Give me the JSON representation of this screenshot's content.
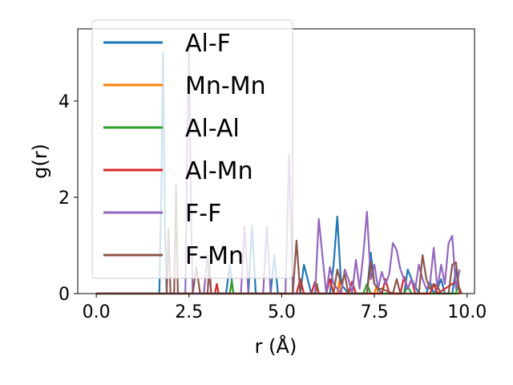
{
  "chart_data": {
    "type": "line",
    "xlabel": "r (Å)",
    "ylabel": "g(r)",
    "xlim": [
      -0.5,
      10.2
    ],
    "ylim": [
      0,
      5.5
    ],
    "xticks": [
      0.0,
      2.5,
      5.0,
      7.5,
      10.0
    ],
    "xtick_labels": [
      "0.0",
      "2.5",
      "5.0",
      "7.5",
      "10.0"
    ],
    "yticks": [
      0,
      2,
      4
    ],
    "ytick_labels": [
      "0",
      "2",
      "4"
    ],
    "grid": false,
    "legend_position": "upper-left",
    "series": [
      {
        "name": "Al-F",
        "color": "#1f77b4",
        "x": [
          0,
          1.7,
          1.75,
          1.8,
          1.85,
          1.9,
          2.0,
          3.5,
          3.6,
          3.7,
          4.1,
          4.2,
          4.3,
          4.7,
          4.8,
          4.9,
          5.5,
          5.6,
          5.8,
          6.3,
          6.4,
          6.5,
          6.6,
          6.8,
          7.3,
          7.4,
          7.5,
          7.7,
          8.3,
          8.4,
          8.5,
          8.7,
          8.9,
          9.0,
          9.1,
          9.2,
          9.3,
          9.4,
          9.6,
          9.7,
          9.8
        ],
        "y": [
          0,
          0,
          2.0,
          5.0,
          1.5,
          0,
          0,
          0,
          0.6,
          0,
          0,
          1.4,
          0,
          0,
          0.8,
          0,
          0,
          0.6,
          0,
          0,
          0.6,
          1.6,
          0.2,
          0,
          0,
          0.85,
          0.2,
          0,
          0,
          0.5,
          0.3,
          0,
          0,
          0.25,
          0,
          0.1,
          0.3,
          0,
          0,
          0.5,
          0
        ]
      },
      {
        "name": "Mn-Mn",
        "color": "#ff7f0e",
        "x": [
          0,
          3.6,
          3.65,
          3.7,
          6.5,
          6.55,
          6.6,
          7.5,
          7.55,
          7.6,
          9.8
        ],
        "y": [
          0,
          0,
          0.25,
          0,
          0,
          0.25,
          0,
          0,
          0.15,
          0,
          0
        ]
      },
      {
        "name": "Al-Al",
        "color": "#2ca02c",
        "x": [
          0,
          3.6,
          3.65,
          3.7,
          5.9,
          5.95,
          6.0,
          7.2,
          7.3,
          7.4,
          8.3,
          8.4,
          8.5,
          9.7,
          9.75,
          9.8
        ],
        "y": [
          0,
          0,
          0.25,
          0,
          0,
          0.2,
          0,
          0,
          0.2,
          0,
          0,
          0.15,
          0,
          0,
          0.2,
          0
        ]
      },
      {
        "name": "Al-Mn",
        "color": "#d62728",
        "x": [
          0,
          3.2,
          3.25,
          3.3,
          5.4,
          5.5,
          5.6,
          5.8,
          5.9,
          6.0,
          6.2,
          6.3,
          6.4,
          6.8,
          6.9,
          7.0,
          7.7,
          7.8,
          7.9,
          8.2,
          8.3,
          8.4,
          8.5,
          8.6,
          9.0,
          9.1,
          9.2,
          9.7,
          9.8,
          9.85
        ],
        "y": [
          0,
          0,
          0.2,
          0,
          0,
          0.3,
          0,
          0,
          0.25,
          0,
          0,
          0.3,
          0,
          0,
          0.25,
          0,
          0,
          0.3,
          0,
          0,
          0.35,
          0.1,
          0.3,
          0,
          0,
          0.2,
          0,
          0.25,
          0.1,
          0
        ]
      },
      {
        "name": "F-F",
        "color": "#9467bd",
        "x": [
          0,
          2.4,
          2.45,
          2.5,
          2.55,
          2.6,
          2.9,
          3.0,
          3.1,
          3.9,
          4.0,
          4.1,
          4.5,
          4.6,
          4.7,
          5.1,
          5.2,
          5.3,
          5.9,
          6.0,
          6.2,
          6.3,
          6.4,
          6.6,
          6.7,
          6.8,
          6.9,
          7.0,
          7.1,
          7.2,
          7.3,
          7.4,
          7.5,
          7.6,
          7.7,
          7.8,
          7.9,
          8.0,
          8.1,
          8.2,
          8.3,
          8.4,
          8.5,
          8.6,
          8.7,
          8.8,
          8.9,
          9.0,
          9.1,
          9.2,
          9.3,
          9.4,
          9.5,
          9.6,
          9.7,
          9.8
        ],
        "y": [
          0,
          0,
          3.0,
          5.1,
          2.0,
          0,
          0,
          0.8,
          0,
          0,
          1.4,
          0,
          0,
          1.4,
          0,
          0,
          2.9,
          0,
          0,
          1.55,
          0,
          0.55,
          0.2,
          0,
          0.5,
          0.3,
          0,
          0.7,
          0.1,
          0.8,
          1.7,
          0.3,
          0.6,
          0.1,
          0.45,
          0.2,
          0.4,
          1.05,
          0.9,
          0.5,
          0.3,
          0.1,
          0.3,
          0.1,
          0.6,
          0.3,
          0.1,
          0.2,
          0.95,
          0.1,
          0.6,
          0.2,
          1.05,
          1.2,
          0.1,
          0.5
        ]
      },
      {
        "name": "F-Mn",
        "color": "#8c564b",
        "x": [
          0,
          1.9,
          1.95,
          2.0,
          2.1,
          2.15,
          2.2,
          2.6,
          2.7,
          2.8,
          3.0,
          3.05,
          3.1,
          5.3,
          5.4,
          5.5,
          6.4,
          6.5,
          6.6,
          6.7,
          6.8,
          7.3,
          7.4,
          7.5,
          7.6,
          7.7,
          8.0,
          8.1,
          8.2,
          8.7,
          8.8,
          8.9,
          9.0,
          9.1,
          9.2,
          9.3,
          9.5,
          9.6,
          9.7,
          9.8
        ],
        "y": [
          0,
          0,
          1.35,
          0,
          0,
          2.25,
          0,
          0,
          0.55,
          0,
          0,
          0.6,
          0,
          0,
          1.1,
          0,
          0,
          0.5,
          0.2,
          0.4,
          0,
          0,
          0.65,
          0.2,
          0.1,
          0.1,
          0,
          0.3,
          0,
          0,
          0.8,
          0.3,
          0.1,
          0.2,
          0.15,
          0,
          0,
          0.6,
          0.65,
          0
        ]
      }
    ]
  }
}
